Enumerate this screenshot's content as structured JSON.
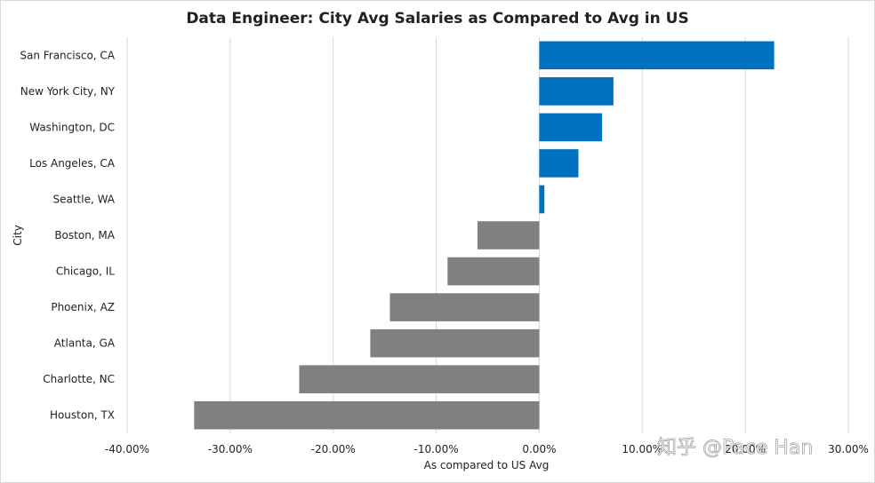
{
  "watermark": "知乎 @Pace Han",
  "chart_data": {
    "type": "bar",
    "orientation": "horizontal",
    "title": "Data Engineer: City Avg Salaries as Compared to Avg in US",
    "xlabel": "As compared to US Avg",
    "ylabel": "City",
    "xlim": [
      -0.4,
      0.3
    ],
    "xticks": [
      -0.4,
      -0.3,
      -0.2,
      -0.1,
      0.0,
      0.1,
      0.2,
      0.3
    ],
    "xtick_labels": [
      "-40.00%",
      "-30.00%",
      "-20.00%",
      "-10.00%",
      "0.00%",
      "10.00%",
      "20.00%",
      "30.00%"
    ],
    "grid": "vertical",
    "legend": "none",
    "colors": {
      "positive": "#0070C0",
      "negative": "#808080",
      "grid": "#d9d9d9"
    },
    "categories": [
      "San Francisco, CA",
      "New York City, NY",
      "Washington, DC",
      "Los Angeles, CA",
      "Seattle, WA",
      "Boston, MA",
      "Chicago, IL",
      "Phoenix, AZ",
      "Atlanta, GA",
      "Charlotte, NC",
      "Houston, TX"
    ],
    "values": [
      0.228,
      0.072,
      0.061,
      0.038,
      0.005,
      -0.06,
      -0.089,
      -0.145,
      -0.164,
      -0.233,
      -0.335
    ]
  }
}
